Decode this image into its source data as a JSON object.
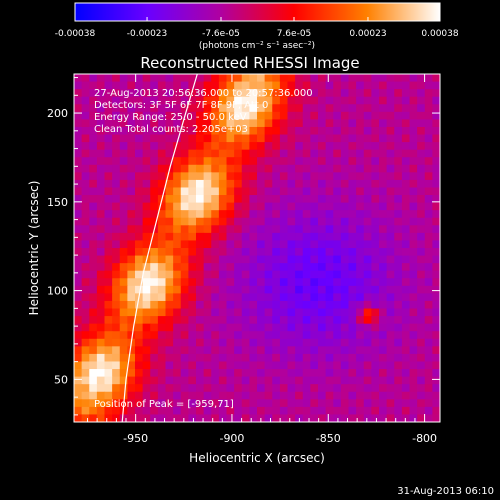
{
  "chart_data": {
    "type": "heatmap",
    "title": "Reconstructed RHESSI Image",
    "xlabel": "Heliocentric X (arcsec)",
    "ylabel": "Heliocentric Y (arcsec)",
    "xlim": [
      -982,
      -792
    ],
    "ylim": [
      26,
      222
    ],
    "x_ticks": [
      -950,
      -900,
      -850,
      -800
    ],
    "y_ticks": [
      50,
      100,
      150,
      200
    ],
    "x_tick_labels": [
      "-950",
      "-900",
      "-850",
      "-800"
    ],
    "y_tick_labels": [
      "50",
      "100",
      "150",
      "200"
    ],
    "colorbar": {
      "ticks": [
        -0.00038,
        -0.00023,
        -7.6e-05,
        7.6e-05,
        0.00023,
        0.00038
      ],
      "tick_labels": [
        "-0.00038",
        "-0.00023",
        "-7.6e-05",
        "7.6e-05",
        "0.00023",
        "0.00038"
      ],
      "unit_label": "(photons cm⁻² s⁻¹ asec⁻²)",
      "range": [
        -0.00038,
        0.00038
      ],
      "colors": [
        "#0000ff",
        "#6a00ff",
        "#b000a0",
        "#ff0000",
        "#ff8000",
        "#ffffff"
      ]
    },
    "annotations": {
      "time_range": "27-Aug-2013 20:56:36.000 to 20:57:36.000",
      "detectors": "Detectors: 3F 5F 6F 7F 8F 9F, Att 0",
      "energy_range": "Energy Range: 25.0 - 50.0 keV",
      "clean": "Clean     Total counts: 2.205e+03",
      "peak": "Position of Peak = [-959,71]"
    },
    "peak_position": [
      -959,
      71
    ],
    "limb_curve": [
      [
        -957,
        26
      ],
      [
        -955,
        50
      ],
      [
        -951,
        80
      ],
      [
        -946,
        110
      ],
      [
        -939,
        140
      ],
      [
        -932,
        170
      ],
      [
        -924,
        200
      ],
      [
        -918,
        222
      ]
    ],
    "emission_ridge": [
      [
        -975,
        40
      ],
      [
        -965,
        60
      ],
      [
        -955,
        80
      ],
      [
        -945,
        100
      ],
      [
        -935,
        120
      ],
      [
        -925,
        140
      ],
      [
        -912,
        165
      ],
      [
        -900,
        190
      ],
      [
        -888,
        215
      ]
    ],
    "negative_region": [
      -855,
      105
    ],
    "positive_patch": [
      -829,
      86
    ]
  },
  "footer": {
    "date": "31-Aug-2013 06:10"
  }
}
